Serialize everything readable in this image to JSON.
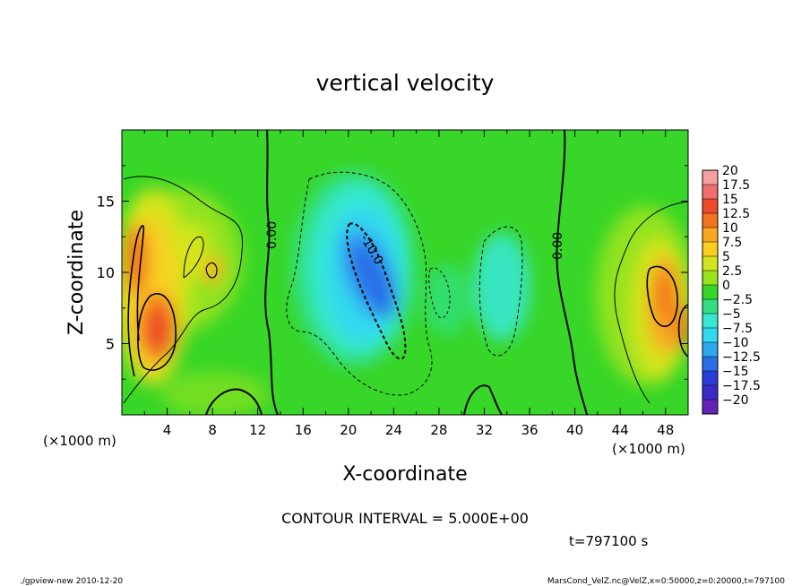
{
  "chart_data": {
    "type": "heatmap",
    "title": "vertical velocity",
    "xlabel": "X-coordinate",
    "ylabel": "Z-coordinate",
    "x_units": "(×1000 m)",
    "x_units_right": "(×1000 m)",
    "xlim": [
      0,
      50
    ],
    "ylim": [
      0,
      20
    ],
    "xticks": [
      "4",
      "8",
      "12",
      "16",
      "20",
      "24",
      "28",
      "32",
      "36",
      "40",
      "44",
      "48"
    ],
    "yticks": [
      "5",
      "10",
      "15"
    ],
    "colorbar": {
      "labels": [
        "20",
        "17.5",
        "15",
        "12.5",
        "10",
        "7.5",
        "5",
        "2.5",
        "0",
        "−2.5",
        "−5",
        "−7.5",
        "−10",
        "−12.5",
        "−15",
        "−17.5",
        "−20"
      ],
      "colors": [
        "#f5a0a0",
        "#f26e6e",
        "#ee4a2a",
        "#f3741e",
        "#f7a722",
        "#f7d021",
        "#d4e41e",
        "#9be41c",
        "#38d628",
        "#30e07e",
        "#36e8d0",
        "#30d8f0",
        "#30a8f0",
        "#2a6ee8",
        "#2a3cd8",
        "#3c2ac8",
        "#6422b8"
      ]
    },
    "contour_labels": [
      "0.00",
      "-10.0",
      "0.00"
    ],
    "contour_interval": "CONTOUR INTERVAL = 5.000E+00",
    "time": "t=797100 s"
  },
  "footer": {
    "left": "./gpview-new  2010-12-20",
    "right": "MarsCond_VelZ.nc@VelZ,x=0:50000,z=0:20000,t=797100"
  },
  "colors": {
    "background": "#ffffff",
    "zero_field": "#38d628"
  }
}
